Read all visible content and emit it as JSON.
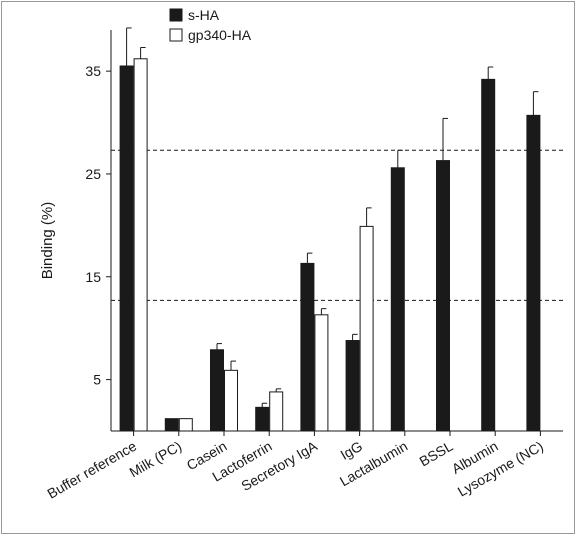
{
  "chart_data": {
    "type": "bar",
    "title": "",
    "xlabel": "",
    "ylabel": "Binding (%)",
    "ylim": [
      0,
      39
    ],
    "yticks": [
      5,
      15,
      25,
      35
    ],
    "categories": [
      "Buffer reference",
      "Milk (PC)",
      "Casein",
      "Lactoferrin",
      "Secretory IgA",
      "IgG",
      "Lactalbumin",
      "BSSL",
      "Albumin",
      "Lysozyme (NC)"
    ],
    "series": [
      {
        "name": "s-HA",
        "color": "#1a1a1a",
        "values": [
          35.5,
          1.2,
          7.9,
          2.3,
          16.3,
          8.8,
          25.6,
          26.3,
          34.2,
          30.7
        ],
        "errors": [
          3.7,
          0,
          0.6,
          0.4,
          1.0,
          0.6,
          1.7,
          4.1,
          1.2,
          2.3
        ]
      },
      {
        "name": "gp340-HA",
        "color": "#ffffff",
        "values": [
          36.2,
          1.2,
          5.9,
          3.8,
          11.3,
          19.9,
          null,
          null,
          null,
          null
        ],
        "errors": [
          1.1,
          0,
          0.9,
          0.3,
          0.6,
          1.8,
          null,
          null,
          null,
          null
        ]
      }
    ],
    "reference_lines": [
      27.3,
      12.7
    ],
    "legend_position": "top-left",
    "grid": false
  }
}
